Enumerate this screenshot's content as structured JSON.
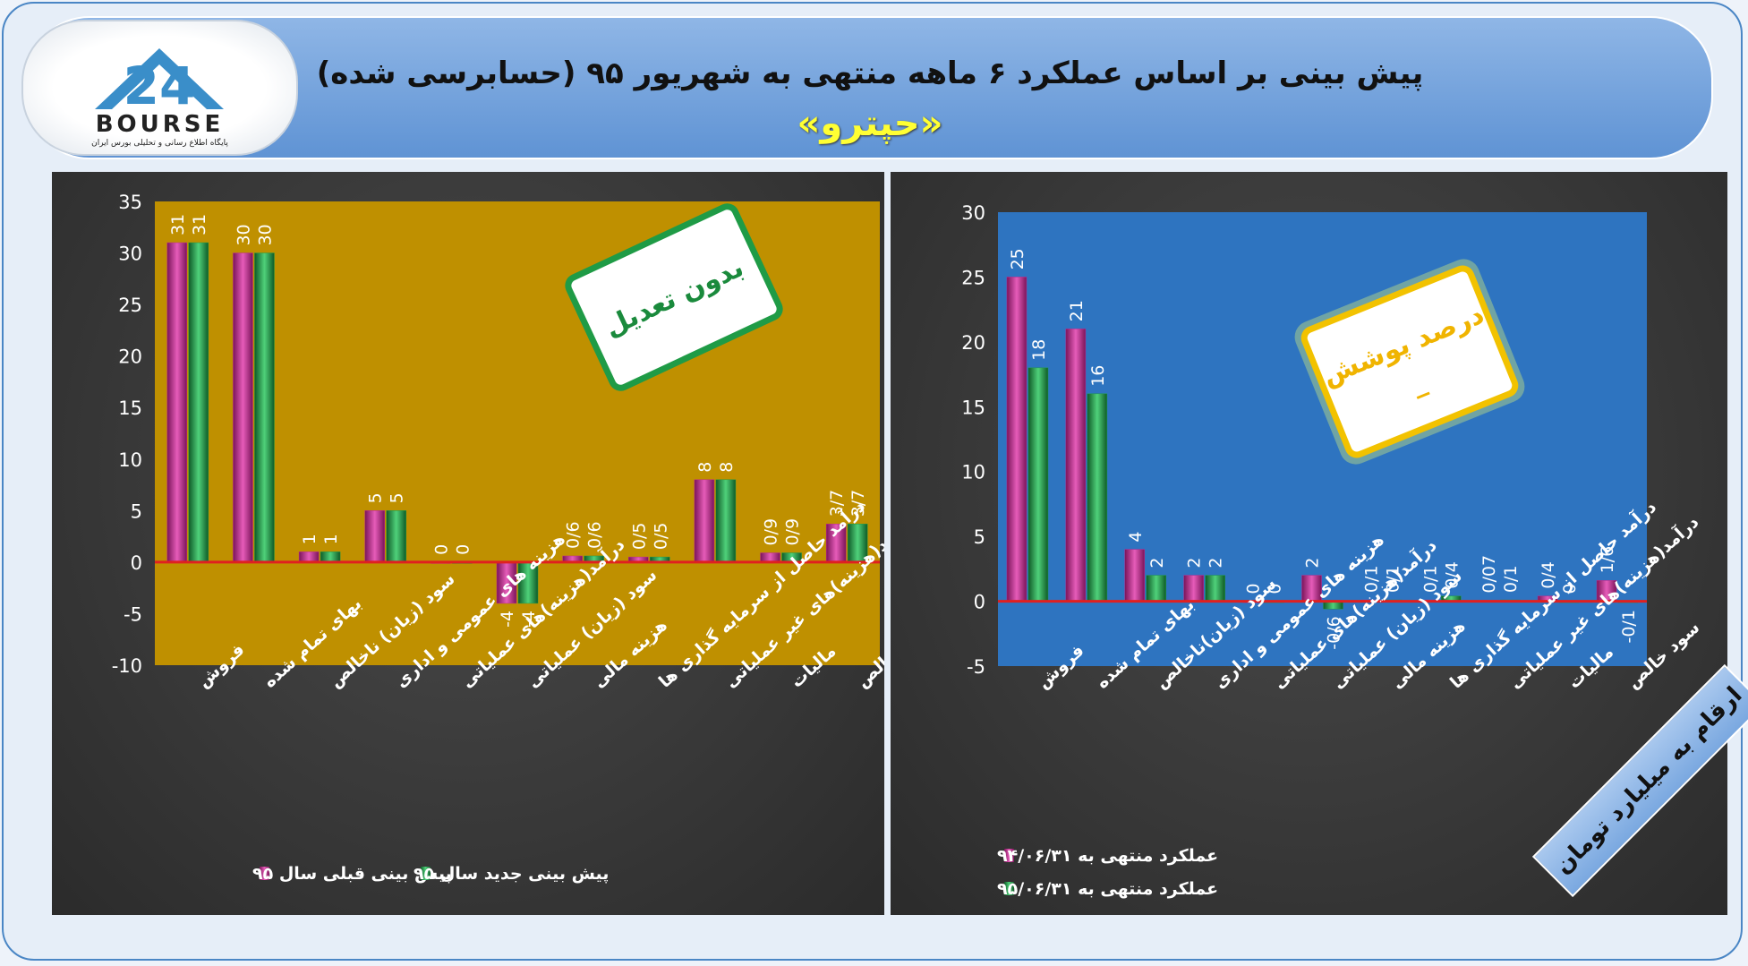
{
  "header": {
    "title_line1": "پیش بینی بر اساس عملکرد ۶ ماهه منتهی به شهریور ۹۵ (حسابرسی شده)",
    "title_line2": "«حپترو»"
  },
  "logo": {
    "brand": "BOURSE",
    "tagline": "پایگاه اطلاع رسانی و تحلیلی بورس ایران"
  },
  "footnote": "ارقام به میلیارد تومان",
  "colors": {
    "magenta": "#c0278f",
    "green": "#1f9b46",
    "left_plot_bg": "#bf9000",
    "right_plot_bg": "#2e74c0"
  },
  "chart_data": [
    {
      "type": "bar",
      "badge": "بدون تعدیل",
      "categories": [
        "فروش",
        "بهای تمام شده",
        "سود (زیان) ناخالص",
        "هزینه های عمومی و اداری",
        "درآمد(هزینه)های عملیاتی",
        "سود (زیان) عملیاتی",
        "هزینه مالی",
        "درآمد حاصل از سرمایه گذاری ها",
        "درآمد(هزینه)های غیر عملیاتی",
        "مالیات",
        "سود خالص"
      ],
      "series": [
        {
          "name": "پیش بینی قبلی سال ۹۵",
          "values": [
            31,
            30,
            1,
            5,
            0,
            -4,
            0.6,
            0.5,
            8,
            0.9,
            3.7
          ],
          "labels": [
            "31",
            "30",
            "1",
            "5",
            "0",
            "-4",
            "0/6",
            "0/5",
            "8",
            "0/9",
            "3/7"
          ]
        },
        {
          "name": "پیش بینی جدید سال ۹۵",
          "values": [
            31,
            30,
            1,
            5,
            0,
            -4,
            0.6,
            0.5,
            8,
            0.9,
            3.7
          ],
          "labels": [
            "31",
            "30",
            "1",
            "5",
            "0",
            "-4",
            "0/6",
            "0/5",
            "8",
            "0/9",
            "3/7"
          ]
        }
      ],
      "ylim": [
        -10,
        35
      ],
      "yticks": [
        -10,
        -5,
        0,
        5,
        10,
        15,
        20,
        25,
        30,
        35
      ],
      "legend": "bottom"
    },
    {
      "type": "bar",
      "badge": "درصد پوشش",
      "badge_value": "_",
      "categories": [
        "فروش",
        "بهای تمام شده",
        "سود (زیان)ناخالص",
        "هزینه های عمومی و اداری",
        "درآمد(هزینه)های عملیاتی",
        "سود (زیان) عملیاتی",
        "هزینه مالی",
        "درآمد حاصل از سرمایه گذاری ها",
        "درآمد(هزینه)های غیر عملیاتی",
        "مالیات",
        "سود خالص"
      ],
      "series": [
        {
          "name": "عملکرد منتهی به ۹۴/۰۶/۳۱",
          "values": [
            25,
            21,
            4,
            2,
            0,
            2,
            0.1,
            0.1,
            0.07,
            0.4,
            1.6
          ],
          "labels": [
            "25",
            "21",
            "4",
            "2",
            "0",
            "2",
            "0/1",
            "0/1",
            "0/07",
            "0/4",
            "1/6"
          ]
        },
        {
          "name": "عملکرد منتهی به ۹۵/۰۶/۳۱",
          "values": [
            18,
            16,
            2,
            2,
            0,
            -0.6,
            0.1,
            0.4,
            0.1,
            0,
            -0.1
          ],
          "labels": [
            "18",
            "16",
            "2",
            "2",
            "0",
            "-0/6",
            "0/1",
            "0/4",
            "0/1",
            "0",
            "-0/1"
          ]
        }
      ],
      "ylim": [
        -5,
        30
      ],
      "yticks": [
        -5,
        0,
        5,
        10,
        15,
        20,
        25,
        30
      ],
      "legend": "bottom"
    }
  ]
}
